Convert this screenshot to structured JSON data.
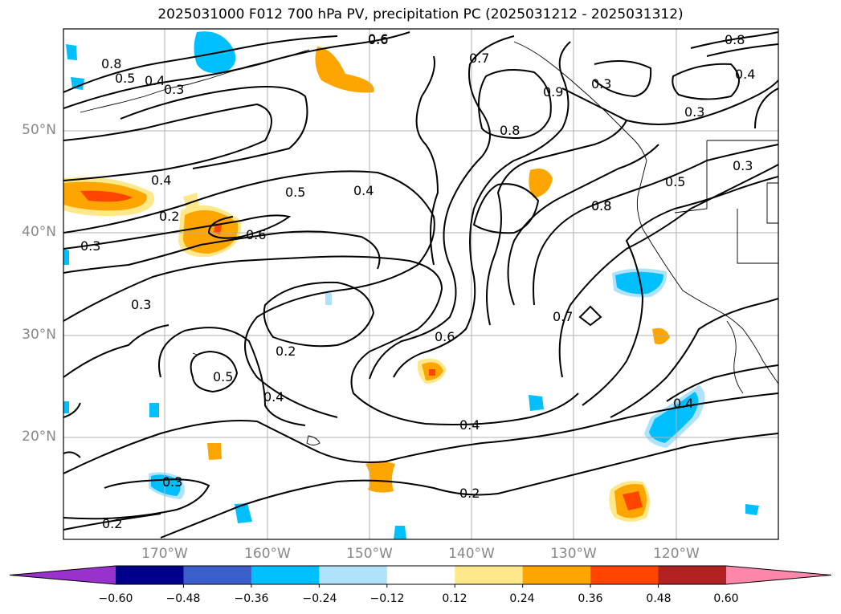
{
  "title": "2025031000 F012 700 hPa PV, precipitation PC (2025031212 - 2025031312)",
  "lat_labels": [
    "50°N",
    "40°N",
    "30°N",
    "20°N"
  ],
  "lon_labels": [
    "170°W",
    "160°W",
    "150°W",
    "140°W",
    "130°W",
    "120°W"
  ],
  "contour_labels": [
    "0.8",
    "0.6",
    "0.5",
    "0.4",
    "0.3",
    "0.6",
    "0.7",
    "0.8",
    "0.3",
    "0.9",
    "0.8",
    "0.4",
    "0.3",
    "0.8",
    "0.3",
    "0.4",
    "0.2",
    "0.3",
    "0.5",
    "0.4",
    "0.6",
    "0.8",
    "0.5",
    "0.3",
    "0.3",
    "0.2",
    "0.5",
    "0.4",
    "0.6",
    "0.7",
    "0.4",
    "0.4",
    "0.2",
    "0.3",
    "0.2"
  ],
  "colorbar": {
    "ticks": [
      "−0.60",
      "−0.48",
      "−0.36",
      "−0.24",
      "−0.12",
      "0.12",
      "0.24",
      "0.36",
      "0.48",
      "0.60"
    ],
    "colors": [
      "#9932cc",
      "#00008b",
      "#3a5fcd",
      "#00bfff",
      "#aee3fb",
      "#ffffff",
      "#ffe88a",
      "#ffa500",
      "#ff4500",
      "#b22222",
      "#ff88aa"
    ]
  }
}
